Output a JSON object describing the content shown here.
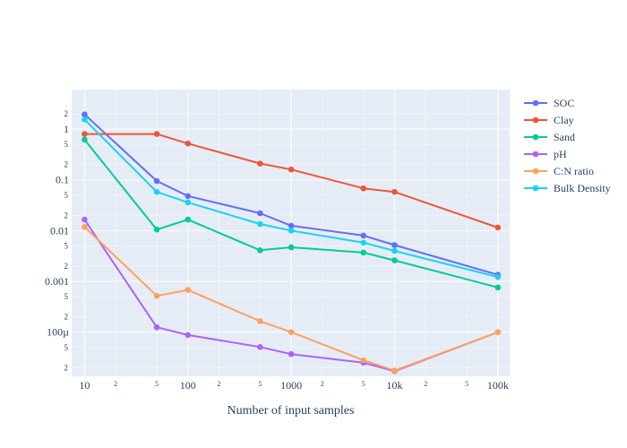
{
  "chart_data": {
    "type": "line",
    "title": "",
    "xlabel": "Number of input samples",
    "ylabel": "",
    "x_scale": "log",
    "y_scale": "log",
    "xlim": [
      7.5,
      130000
    ],
    "ylim": [
      1.35e-05,
      6
    ],
    "grid": true,
    "legend_position": "right",
    "x": [
      10,
      50,
      100,
      500,
      1000,
      5000,
      10000,
      100000
    ],
    "x_major_ticks": [
      "10",
      "100",
      "1000",
      "10k",
      "100k"
    ],
    "x_minor_ticks": [
      "2",
      "5",
      "2",
      "5",
      "2",
      "5",
      "2",
      "5"
    ],
    "y_major_ticks": [
      "100µ",
      "0.001",
      "0.01",
      "0.1",
      "1"
    ],
    "y_minor_ticks": [
      "2",
      "5",
      "2",
      "5",
      "2",
      "5",
      "2",
      "5",
      "2",
      "5",
      "2"
    ],
    "series": [
      {
        "name": "SOC",
        "color": "#636efa",
        "values": [
          1.95,
          0.095,
          0.048,
          0.022,
          0.0125,
          0.008,
          0.0052,
          0.00135
        ]
      },
      {
        "name": "Clay",
        "color": "#ef553b",
        "values": [
          0.8,
          0.8,
          0.52,
          0.21,
          0.16,
          0.068,
          0.058,
          0.0115
        ]
      },
      {
        "name": "Sand",
        "color": "#00cc96",
        "values": [
          0.62,
          0.0105,
          0.0165,
          0.0041,
          0.0047,
          0.0037,
          0.0026,
          0.00076
        ]
      },
      {
        "name": "pH",
        "color": "#ab63fa",
        "values": [
          0.0165,
          0.000125,
          8.8e-05,
          5.1e-05,
          3.7e-05,
          2.5e-05,
          1.7e-05,
          0.0001
        ]
      },
      {
        "name": "C:N ratio",
        "color": "#ffa15a",
        "values": [
          0.0118,
          0.00052,
          0.00068,
          0.000165,
          0.0001,
          2.8e-05,
          1.75e-05,
          0.0001
        ]
      },
      {
        "name": "Bulk Density",
        "color": "#19d3f3",
        "values": [
          1.55,
          0.058,
          0.036,
          0.0135,
          0.01,
          0.0058,
          0.004,
          0.00122
        ]
      }
    ]
  }
}
